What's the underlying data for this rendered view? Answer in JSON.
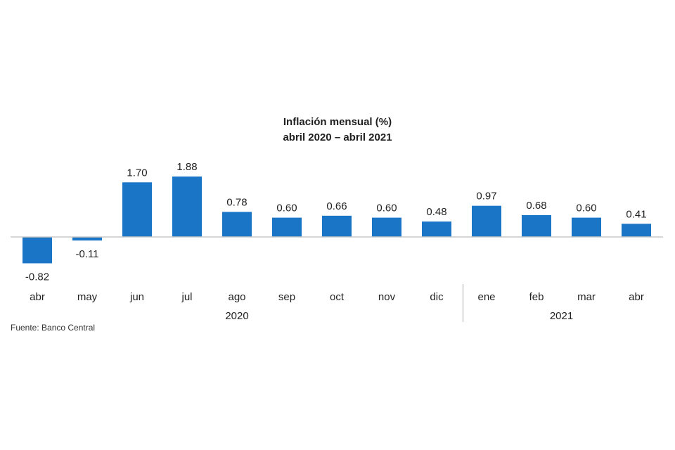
{
  "chart_data": {
    "type": "bar",
    "title": "Inflación mensual (%)",
    "subtitle": "abril 2020 – abril 2021",
    "categories": [
      "abr",
      "may",
      "jun",
      "jul",
      "ago",
      "sep",
      "oct",
      "nov",
      "dic",
      "ene",
      "feb",
      "mar",
      "abr"
    ],
    "values": [
      -0.82,
      -0.11,
      1.7,
      1.88,
      0.78,
      0.6,
      0.66,
      0.6,
      0.48,
      0.97,
      0.68,
      0.6,
      0.41
    ],
    "value_labels": [
      "-0.82",
      "-0.11",
      "1.70",
      "1.88",
      "0.78",
      "0.60",
      "0.66",
      "0.60",
      "0.48",
      "0.97",
      "0.68",
      "0.60",
      "0.41"
    ],
    "year_groups": [
      {
        "label": "2020",
        "first_index": 0,
        "last_index": 8
      },
      {
        "label": "2021",
        "first_index": 9,
        "last_index": 12
      }
    ],
    "bar_color": "#1a75c7",
    "baseline_color": "#c8c8c8",
    "xlabel": "",
    "ylabel": "",
    "grid": false
  },
  "source": "Fuente: Banco Central"
}
